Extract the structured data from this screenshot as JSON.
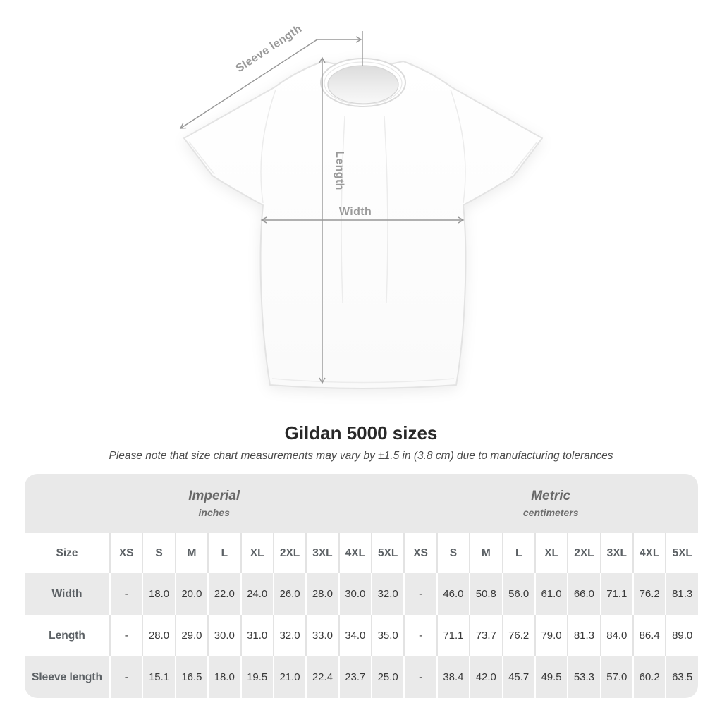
{
  "diagram": {
    "labels": {
      "sleeve_length": "Sleeve length",
      "length": "Length",
      "width": "Width"
    }
  },
  "title": "Gildan 5000 sizes",
  "subtitle": "Please note that size chart measurements may vary by ±1.5 in (3.8 cm) due to manufacturing tolerances",
  "table": {
    "unit_groups": [
      {
        "label": "Imperial",
        "sublabel": "inches"
      },
      {
        "label": "Metric",
        "sublabel": "centimeters"
      }
    ],
    "size_col_header": "Size",
    "size_headers": [
      "XS",
      "S",
      "M",
      "L",
      "XL",
      "2XL",
      "3XL",
      "4XL",
      "5XL",
      "XS",
      "S",
      "M",
      "L",
      "XL",
      "2XL",
      "3XL",
      "4XL",
      "5XL"
    ],
    "rows": [
      {
        "label": "Width",
        "values": [
          "-",
          "18.0",
          "20.0",
          "22.0",
          "24.0",
          "26.0",
          "28.0",
          "30.0",
          "32.0",
          "-",
          "46.0",
          "50.8",
          "56.0",
          "61.0",
          "66.0",
          "71.1",
          "76.2",
          "81.3"
        ]
      },
      {
        "label": "Length",
        "values": [
          "-",
          "28.0",
          "29.0",
          "30.0",
          "31.0",
          "32.0",
          "33.0",
          "34.0",
          "35.0",
          "-",
          "71.1",
          "73.7",
          "76.2",
          "79.0",
          "81.3",
          "84.0",
          "86.4",
          "89.0"
        ]
      },
      {
        "label": "Sleeve length",
        "values": [
          "-",
          "15.1",
          "16.5",
          "18.0",
          "19.5",
          "21.0",
          "22.4",
          "23.7",
          "25.0",
          "-",
          "38.4",
          "42.0",
          "45.7",
          "49.5",
          "53.3",
          "57.0",
          "60.2",
          "63.5"
        ]
      }
    ]
  },
  "colors": {
    "annotation_gray": "#979797",
    "band_gray": "#e9e9e9",
    "row_gray": "#eaeaea",
    "value_text": "#393939",
    "label_text": "#5c6165"
  }
}
